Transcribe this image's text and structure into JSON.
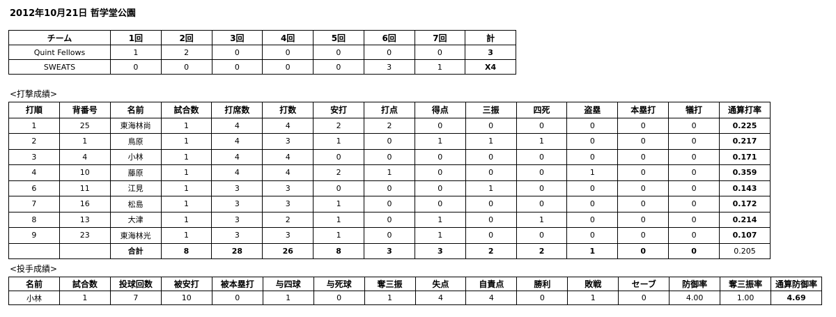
{
  "title": "2012年10月21日  哲学堂公園",
  "linescore": {
    "headers": [
      "チーム",
      "1回",
      "2回",
      "3回",
      "4回",
      "5回",
      "6回",
      "7回",
      "計"
    ],
    "rows": [
      [
        "Quint Fellows",
        "1",
        "2",
        "0",
        "0",
        "0",
        "0",
        "0",
        "3"
      ],
      [
        "SWEATS",
        "0",
        "0",
        "0",
        "0",
        "0",
        "3",
        "1",
        "X4"
      ]
    ]
  },
  "batting": {
    "caption": "<打撃成績>",
    "headers": [
      "打順",
      "背番号",
      "名前",
      "試合数",
      "打席数",
      "打数",
      "安打",
      "打点",
      "得点",
      "三振",
      "四死",
      "盗塁",
      "本塁打",
      "犠打",
      "通算打率"
    ],
    "rows": [
      [
        "1",
        "25",
        "東海林尚",
        "1",
        "4",
        "4",
        "2",
        "2",
        "0",
        "0",
        "0",
        "0",
        "0",
        "0",
        "0.225"
      ],
      [
        "2",
        "1",
        "鳥原",
        "1",
        "4",
        "3",
        "1",
        "0",
        "1",
        "1",
        "1",
        "0",
        "0",
        "0",
        "0.217"
      ],
      [
        "3",
        "4",
        "小林",
        "1",
        "4",
        "4",
        "0",
        "0",
        "0",
        "0",
        "0",
        "0",
        "0",
        "0",
        "0.171"
      ],
      [
        "4",
        "10",
        "藤原",
        "1",
        "4",
        "4",
        "2",
        "1",
        "0",
        "0",
        "0",
        "1",
        "0",
        "0",
        "0.359"
      ],
      [
        "6",
        "11",
        "江見",
        "1",
        "3",
        "3",
        "0",
        "0",
        "0",
        "1",
        "0",
        "0",
        "0",
        "0",
        "0.143"
      ],
      [
        "7",
        "16",
        "松島",
        "1",
        "3",
        "3",
        "1",
        "0",
        "0",
        "0",
        "0",
        "0",
        "0",
        "0",
        "0.172"
      ],
      [
        "8",
        "13",
        "大津",
        "1",
        "3",
        "2",
        "1",
        "0",
        "1",
        "0",
        "1",
        "0",
        "0",
        "0",
        "0.214"
      ],
      [
        "9",
        "23",
        "東海林光",
        "1",
        "3",
        "3",
        "1",
        "0",
        "1",
        "0",
        "0",
        "0",
        "0",
        "0",
        "0.107"
      ]
    ],
    "total": [
      "",
      "",
      "合計",
      "8",
      "28",
      "26",
      "8",
      "3",
      "3",
      "2",
      "2",
      "1",
      "0",
      "0",
      "0.205"
    ]
  },
  "pitching": {
    "caption": "<投手成績>",
    "headers": [
      "名前",
      "試合数",
      "投球回数",
      "被安打",
      "被本塁打",
      "与四球",
      "与死球",
      "奪三振",
      "失点",
      "自責点",
      "勝利",
      "敗戦",
      "セーブ",
      "防御率",
      "奪三振率",
      "通算防御率"
    ],
    "rows": [
      [
        "小林",
        "1",
        "7",
        "10",
        "0",
        "1",
        "0",
        "1",
        "4",
        "4",
        "0",
        "1",
        "0",
        "4.00",
        "1.00",
        "4.69"
      ]
    ]
  }
}
